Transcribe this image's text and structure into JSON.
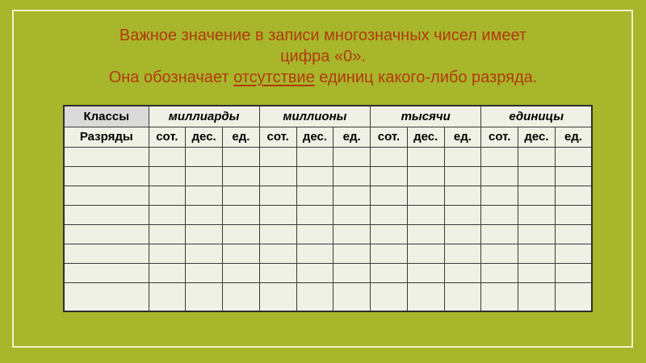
{
  "title": {
    "line1": "Важное значение в записи многозначных чисел имеет",
    "line2": "цифра «0».",
    "line3_before": "Она обозначает ",
    "line3_underlined": "отсутствие",
    "line3_after": " единиц какого-либо разряда."
  },
  "table": {
    "classes_label": "Классы",
    "digits_label": "Разряды",
    "class_groups": [
      "миллиарды",
      "миллионы",
      "тысячи",
      "единицы"
    ],
    "digit_cols": [
      "сот.",
      "дес.",
      "ед."
    ],
    "empty_row_count": 8,
    "columns_per_group": 3
  },
  "colors": {
    "background": "#a8b62b",
    "frame_line": "#edf2cc",
    "title_text": "#b23a0e",
    "cell_background": "#eef1e4",
    "classes_cell_background": "#dadada",
    "table_border": "#3b3b3b"
  }
}
